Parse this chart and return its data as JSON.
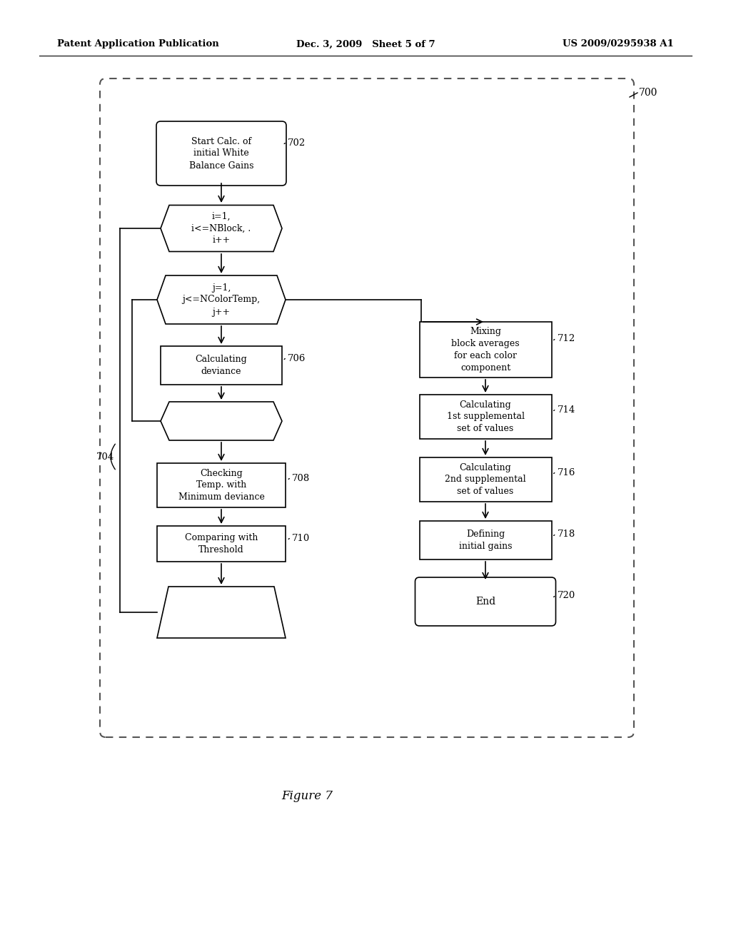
{
  "bg_color": "#ffffff",
  "header_left": "Patent Application Publication",
  "header_mid": "Dec. 3, 2009   Sheet 5 of 7",
  "header_right": "US 2009/0295938 A1",
  "figure_label": "Figure 7"
}
